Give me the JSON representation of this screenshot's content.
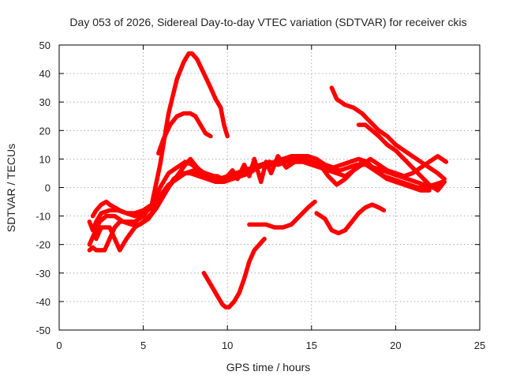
{
  "chart_data": {
    "type": "scatter",
    "title": "Day 053 of 2026, Sidereal Day-to-day VTEC variation (SDTVAR) for receiver ckis",
    "xlabel": "GPS time / hours",
    "ylabel": "SDTVAR / TECUs",
    "xlim": [
      0,
      25
    ],
    "ylim": [
      -50,
      50
    ],
    "xticks": [
      0,
      5,
      10,
      15,
      20,
      25
    ],
    "yticks": [
      -50,
      -40,
      -30,
      -20,
      -10,
      0,
      10,
      20,
      30,
      40,
      50
    ],
    "grid": true,
    "marker_color": "#ff0000",
    "series": [
      {
        "x": [
          1.8,
          2.0,
          2.2,
          2.5,
          3.0,
          3.5,
          4.0,
          4.5,
          5.0,
          5.5,
          6.0,
          6.5,
          7.0,
          7.4,
          7.7,
          7.9,
          8.2,
          8.6,
          9.0,
          9.3,
          9.6,
          9.8,
          10.0
        ],
        "y": [
          -12,
          -15,
          -12,
          -9,
          -8,
          -8,
          -9,
          -9,
          -8,
          -6,
          8,
          26,
          38,
          44,
          47,
          47,
          45,
          40,
          35,
          31,
          28,
          22,
          18
        ]
      },
      {
        "x": [
          5.9,
          6.2,
          6.6,
          7.0,
          7.4,
          7.8,
          8.1,
          8.4,
          8.7,
          9.0
        ],
        "y": [
          12,
          17,
          22,
          25,
          26,
          26,
          25,
          22,
          19,
          18
        ]
      },
      {
        "x": [
          1.8,
          2.1,
          2.4,
          2.8,
          3.3,
          3.8,
          4.3,
          4.8,
          5.3,
          5.8,
          6.3,
          6.8,
          7.3,
          7.8,
          8.3,
          8.8,
          9.3,
          9.8,
          10.3,
          10.8,
          11.3,
          11.8,
          12.3,
          12.8,
          13.3,
          13.8,
          14.3,
          14.8,
          15.3,
          15.8,
          16.3,
          16.8,
          17.3,
          17.8,
          18.3,
          18.8,
          19.3,
          19.8,
          20.3,
          20.8,
          21.3,
          21.8,
          22.3,
          22.8
        ],
        "y": [
          -20,
          -16,
          -12,
          -10,
          -10,
          -12,
          -13,
          -13,
          -11,
          -7,
          -2,
          3,
          5,
          5,
          4,
          3,
          2,
          2,
          3,
          4,
          5,
          7,
          8,
          9,
          10,
          11,
          11,
          11,
          10,
          8,
          7,
          8,
          9,
          10,
          9,
          6,
          4,
          3,
          2,
          1,
          0,
          0,
          1,
          2
        ]
      },
      {
        "x": [
          1.8,
          2.0,
          2.2,
          2.4,
          2.7,
          3.0,
          3.3,
          3.6,
          4.0,
          4.5,
          5.0,
          5.5,
          6.0,
          6.5,
          7.0,
          7.5,
          7.9,
          8.3,
          8.7,
          9.2,
          9.7,
          10.2,
          10.7,
          11.2,
          11.7,
          12.2,
          12.7,
          13.2,
          13.7,
          14.2,
          14.7,
          15.2,
          15.7,
          16.2,
          16.7,
          17.2,
          17.7,
          18.2,
          18.7,
          19.2,
          19.7,
          20.2,
          20.7,
          21.2,
          21.7,
          22.2,
          22.8
        ],
        "y": [
          -22,
          -21,
          -22,
          -22,
          -22,
          -18,
          -14,
          -12,
          -12,
          -12,
          -10,
          -6,
          0,
          5,
          7,
          9,
          8,
          6,
          5,
          4,
          3,
          4,
          5,
          6,
          7,
          8,
          8,
          9,
          10,
          10,
          9,
          8,
          7,
          6,
          6,
          7,
          8,
          8,
          7,
          6,
          5,
          4,
          3,
          2,
          1,
          0,
          2
        ]
      },
      {
        "x": [
          2.2,
          2.5,
          3.0,
          3.3,
          3.6,
          4.0,
          4.5,
          5.0,
          5.5,
          6.0,
          6.5,
          7.0,
          7.5,
          7.8,
          8.2,
          8.6,
          9.0,
          9.4,
          9.7,
          10.0,
          10.5,
          11.0,
          11.5,
          12.0,
          12.5,
          13.0,
          13.5,
          14.0,
          14.5,
          15.0,
          15.5,
          16.0,
          16.5,
          17.0,
          17.5,
          18.0,
          18.5,
          19.0,
          19.5,
          20.0,
          20.5,
          21.0,
          21.5,
          22.0,
          22.5,
          23.0
        ],
        "y": [
          -18,
          -14,
          -14,
          -18,
          -22,
          -18,
          -14,
          -12,
          -9,
          -4,
          0,
          4,
          8,
          10,
          7,
          5,
          4,
          4,
          3,
          4,
          5,
          6,
          7,
          8,
          9,
          8,
          9,
          9,
          9,
          8,
          7,
          6,
          5,
          4,
          6,
          8,
          10,
          8,
          6,
          5,
          4,
          5,
          7,
          9,
          11,
          9
        ]
      },
      {
        "x": [
          2.0,
          2.2,
          2.5,
          2.8,
          3.0,
          3.3,
          3.6,
          4.0,
          4.5,
          5.0,
          5.5,
          6.0,
          6.5,
          7.0,
          7.5,
          8.0,
          8.5,
          9.0,
          9.5,
          10.0,
          10.3,
          10.6,
          11.0,
          11.3,
          11.6,
          12.0,
          12.3,
          12.6,
          13.0,
          13.5,
          14.0,
          14.5,
          15.0,
          15.5,
          16.0,
          16.5,
          17.0,
          17.5,
          18.0,
          18.5,
          19.0,
          19.5,
          20.0,
          20.5,
          21.0,
          21.5,
          22.0
        ],
        "y": [
          -10,
          -8,
          -6,
          -5,
          -6,
          -7,
          -8,
          -9,
          -10,
          -9,
          -7,
          -3,
          1,
          3,
          5,
          6,
          5,
          4,
          3,
          4,
          6,
          3,
          8,
          4,
          10,
          2,
          9,
          5,
          11,
          7,
          9,
          10,
          9,
          8,
          4,
          1,
          3,
          6,
          9,
          7,
          5,
          3,
          2,
          1,
          0,
          -1,
          -1
        ]
      },
      {
        "x": [
          8.6,
          9.0,
          9.4,
          9.7,
          9.9,
          10.1,
          10.4,
          10.7,
          11.0,
          11.3,
          11.6,
          11.9,
          12.2
        ],
        "y": [
          -30,
          -34,
          -38,
          -41,
          -42,
          -42,
          -40,
          -37,
          -32,
          -26,
          -22,
          -20,
          -18
        ]
      },
      {
        "x": [
          11.3,
          11.8,
          12.3,
          12.8,
          13.3,
          13.8,
          14.3,
          14.8,
          15.2
        ],
        "y": [
          -13,
          -13,
          -13,
          -14,
          -14,
          -13,
          -10,
          -7,
          -5
        ]
      },
      {
        "x": [
          15.3,
          15.8,
          16.2,
          16.6,
          17.0,
          17.4,
          17.8,
          18.2,
          18.6,
          19.0,
          19.3
        ],
        "y": [
          -9,
          -11,
          -15,
          -16,
          -15,
          -12,
          -9,
          -7,
          -6,
          -7,
          -8
        ]
      },
      {
        "x": [
          16.2,
          16.5,
          17.0,
          17.5,
          18.0,
          18.5,
          19.0,
          19.5,
          20.0,
          20.5,
          21.0,
          21.5,
          22.0,
          22.5,
          22.9
        ],
        "y": [
          35,
          31,
          29,
          28,
          26,
          23,
          20,
          18,
          15,
          13,
          11,
          9,
          7,
          5,
          3
        ]
      },
      {
        "x": [
          17.8,
          18.2,
          18.6,
          19.0,
          19.5,
          20.0,
          20.5,
          21.0,
          21.5,
          22.0,
          22.5,
          22.9
        ],
        "y": [
          22,
          22,
          20,
          18,
          15,
          13,
          10,
          7,
          4,
          1,
          -1,
          2
        ]
      }
    ]
  }
}
